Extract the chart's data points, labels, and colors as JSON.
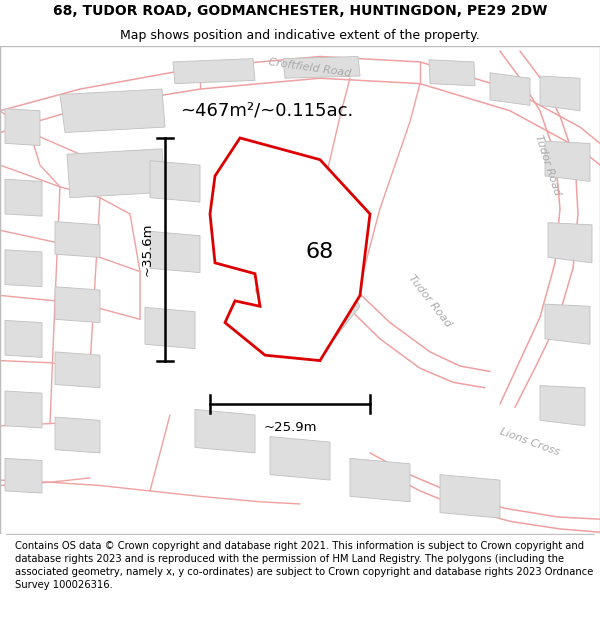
{
  "title_line1": "68, TUDOR ROAD, GODMANCHESTER, HUNTINGDON, PE29 2DW",
  "title_line2": "Map shows position and indicative extent of the property.",
  "footer_text": "Contains OS data © Crown copyright and database right 2021. This information is subject to Crown copyright and database rights 2023 and is reproduced with the permission of HM Land Registry. The polygons (including the associated geometry, namely x, y co-ordinates) are subject to Crown copyright and database rights 2023 Ordnance Survey 100026316.",
  "map_bg": "#f7f7f5",
  "title_bg": "#ffffff",
  "footer_bg": "#ffffff",
  "road_line_color": "#f0a0a0",
  "building_fill": "#dedede",
  "building_edge": "#c0c0c0",
  "property_fill": "#ffffff",
  "property_edge": "#dd0000",
  "area_text": "~467m²/~0.115ac.",
  "property_label": "68",
  "width_label": "~25.9m",
  "height_label": "~35.6m",
  "road_label_color": "#aaaaaa",
  "figsize": [
    6.0,
    6.25
  ],
  "dpi": 100,
  "title_fontsize": 10,
  "subtitle_fontsize": 9,
  "footer_fontsize": 7.2,
  "area_fontsize": 13,
  "label_fontsize": 16,
  "meas_fontsize": 9.5,
  "road_label_fontsize": 8
}
